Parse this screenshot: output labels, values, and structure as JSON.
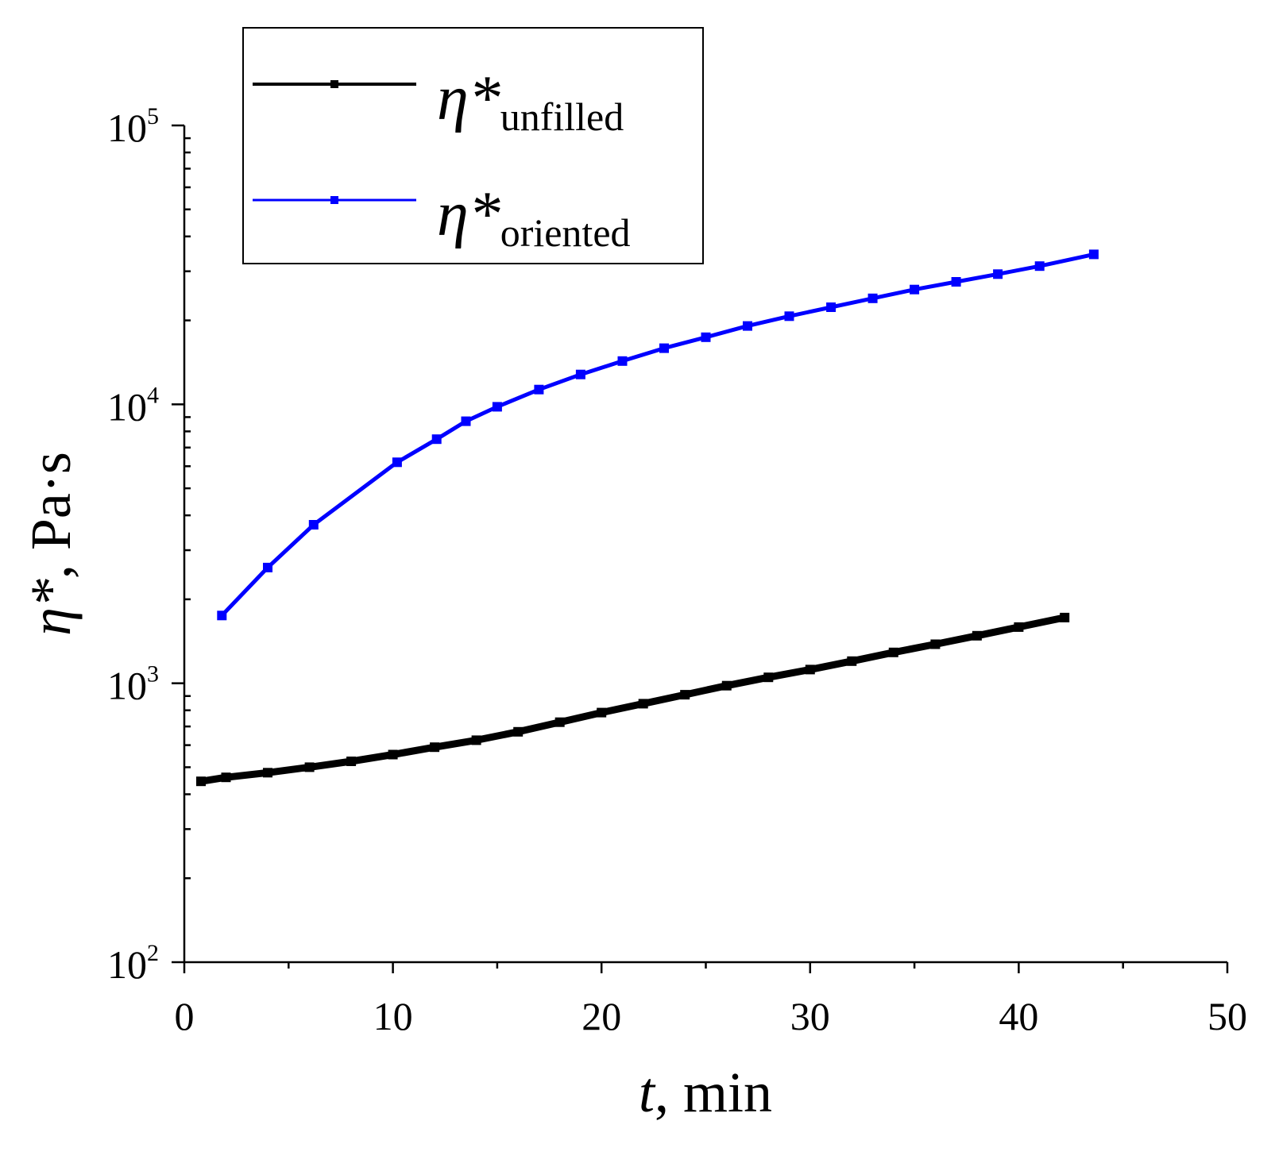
{
  "chart_data": {
    "type": "line",
    "title": "",
    "xlabel": {
      "var": "t",
      "rest": ", min"
    },
    "ylabel": {
      "var": "η*",
      "rest": ", Pa·s"
    },
    "xlim": [
      0,
      50
    ],
    "ylim": [
      100,
      100000
    ],
    "yscale": "log",
    "x_ticks": [
      "0",
      "10",
      "20",
      "30",
      "40",
      "50"
    ],
    "y_ticks": [
      {
        "base": "10",
        "exp": "2"
      },
      {
        "base": "10",
        "exp": "3"
      },
      {
        "base": "10",
        "exp": "4"
      },
      {
        "base": "10",
        "exp": "5"
      }
    ],
    "legend_position": "top-left",
    "series": [
      {
        "name": "η*unfilled",
        "symbol": "η*",
        "subscript": "unfilled",
        "color": "#000000",
        "x": [
          0.8,
          2,
          4,
          6,
          8,
          10,
          12,
          14,
          16,
          18,
          20,
          22,
          24,
          26,
          28,
          30,
          32,
          34,
          36,
          38,
          40,
          42.2
        ],
        "y": [
          445,
          460,
          478,
          500,
          525,
          555,
          590,
          625,
          670,
          725,
          785,
          845,
          910,
          980,
          1050,
          1120,
          1200,
          1290,
          1380,
          1480,
          1590,
          1720
        ]
      },
      {
        "name": "η*oriented",
        "symbol": "η*",
        "subscript": "oriented",
        "color": "#0000ff",
        "x": [
          1.8,
          4,
          6.2,
          10.2,
          12.1,
          13.5,
          15,
          17,
          19,
          21,
          23,
          25,
          27,
          29,
          31,
          33,
          35,
          37,
          39,
          41,
          43.6
        ],
        "y": [
          1750,
          2600,
          3700,
          6200,
          7500,
          8700,
          9800,
          11300,
          12800,
          14300,
          15900,
          17400,
          19100,
          20700,
          22300,
          24000,
          25800,
          27500,
          29300,
          31300,
          34500
        ]
      }
    ]
  }
}
